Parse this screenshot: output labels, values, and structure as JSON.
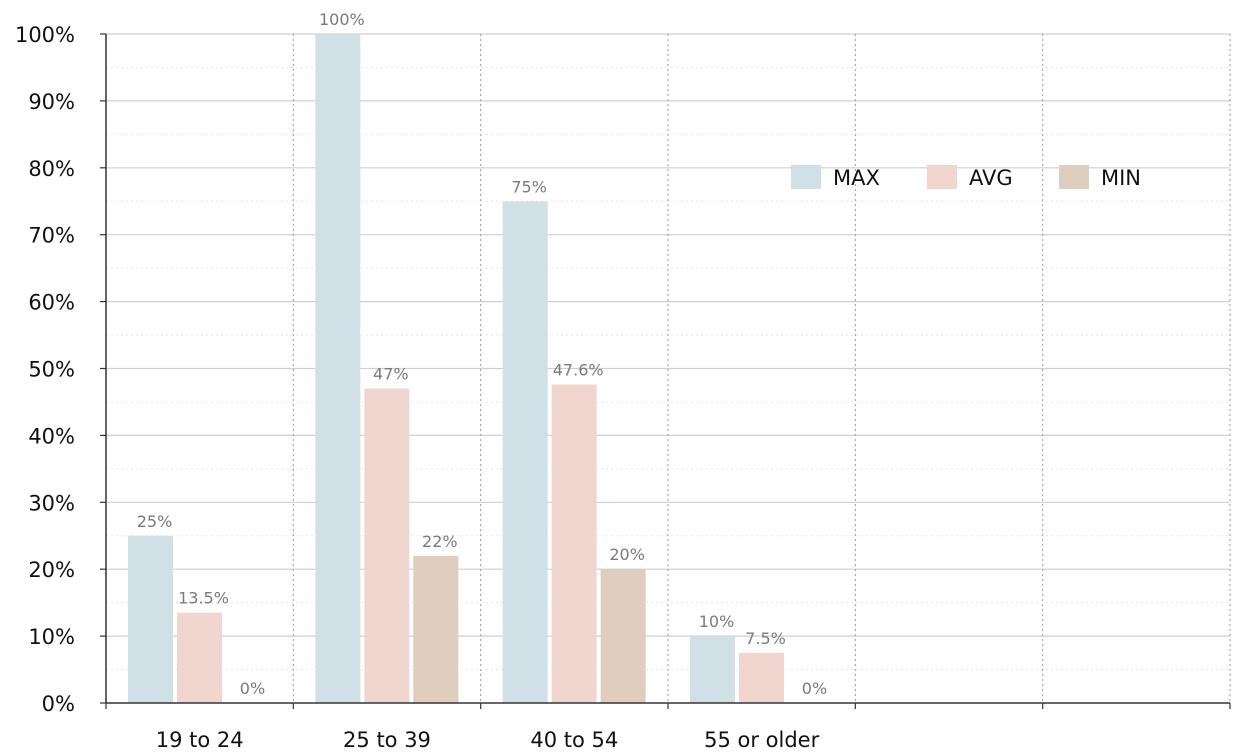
{
  "chart_data": {
    "type": "bar",
    "categories": [
      "19 to 24",
      "25 to 39",
      "40 to 54",
      "55 or older",
      "",
      ""
    ],
    "series": [
      {
        "name": "MAX",
        "color": "#cfe0e6",
        "values": [
          25,
          100,
          75,
          10,
          null,
          null
        ],
        "labels": [
          "25%",
          "100%",
          "75%",
          "10%",
          "",
          ""
        ]
      },
      {
        "name": "AVG",
        "color": "#f1d6d0",
        "values": [
          13.5,
          47,
          47.6,
          7.5,
          null,
          null
        ],
        "labels": [
          "13.5%",
          "47%",
          "47.6%",
          "7.5%",
          "",
          ""
        ]
      },
      {
        "name": "MIN",
        "color": "#dfcebe",
        "values": [
          0,
          22,
          20,
          0,
          null,
          null
        ],
        "labels": [
          "0%",
          "22%",
          "20%",
          "0%",
          "",
          ""
        ]
      }
    ],
    "yticks": [
      "0%",
      "10%",
      "20%",
      "30%",
      "40%",
      "50%",
      "60%",
      "70%",
      "80%",
      "90%",
      "100%"
    ],
    "ylim": [
      0,
      100
    ],
    "grid": true,
    "legend_position": "upper-right"
  }
}
